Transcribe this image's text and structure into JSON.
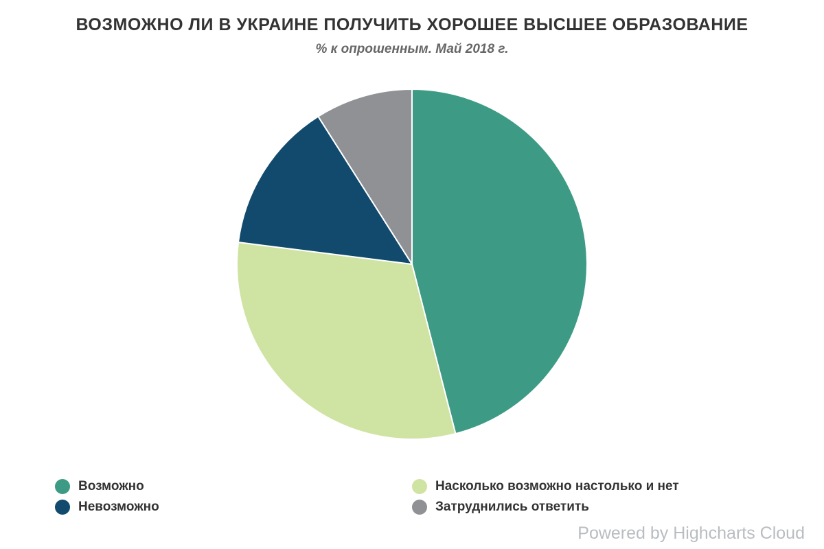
{
  "header": {
    "title": "ВОЗМОЖНО ЛИ В УКРАИНЕ ПОЛУЧИТЬ ХОРОШЕЕ ВЫСШЕЕ ОБРАЗОВАНИЕ",
    "subtitle": "% к опрошенным. Май 2018 г."
  },
  "chart_data": {
    "type": "pie",
    "title": "ВОЗМОЖНО ЛИ В УКРАИНЕ ПОЛУЧИТЬ ХОРОШЕЕ ВЫСШЕЕ ОБРАЗОВАНИЕ",
    "subtitle": "% к опрошенным. Май 2018 г.",
    "unit": "% к опрошенным",
    "date": "Май 2018 г.",
    "labels": [
      "Возможно",
      "Насколько возможно настолько и нет",
      "Невозможно",
      "Затруднились ответить"
    ],
    "values": [
      46,
      31,
      14,
      9
    ],
    "colors": [
      "#3d9b85",
      "#cfe3a2",
      "#114a6d",
      "#8f9194"
    ],
    "start_angle_deg": 0,
    "direction": "clockwise",
    "slice_border_color": "#ffffff",
    "legend_position": "bottom",
    "legend_columns": 2
  },
  "credits": {
    "label": "Powered by Highcharts Cloud"
  }
}
